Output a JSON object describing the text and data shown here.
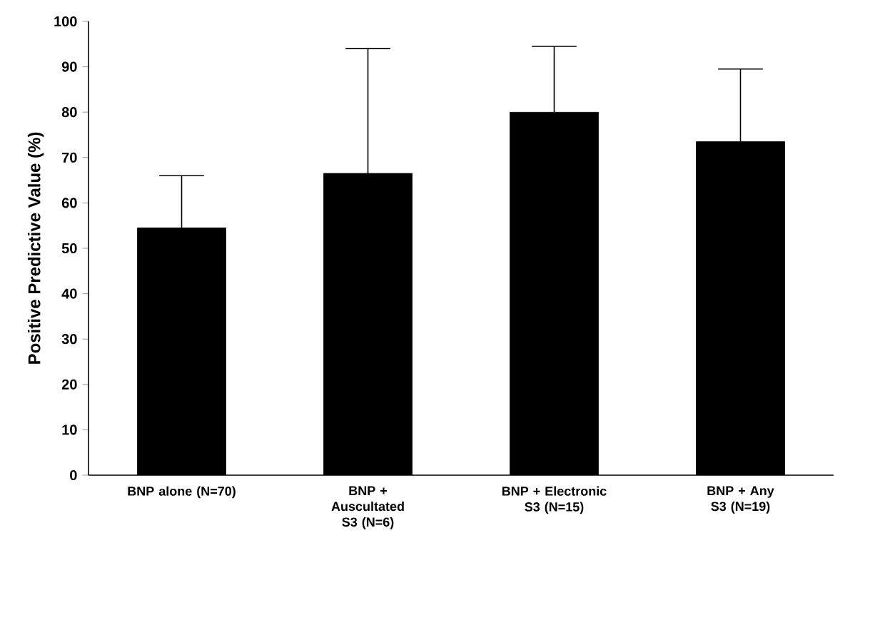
{
  "chart_data": {
    "type": "bar",
    "ylabel": "Positive Predictive Value (%)",
    "categories": [
      "BNP alone (N=70)",
      "BNP + Auscultated S3 (N=6)",
      "BNP + Electronic S3 (N=15)",
      "BNP + Any S3 (N=19)"
    ],
    "values": [
      54.5,
      66.5,
      80,
      73.5
    ],
    "errors": [
      [
        54.5,
        66
      ],
      [
        66.5,
        94
      ],
      [
        80,
        94.5
      ],
      [
        73.5,
        89.5
      ]
    ],
    "color": "#000000",
    "ylim": [
      0,
      100
    ],
    "yticks": [
      0,
      10,
      20,
      30,
      40,
      50,
      60,
      70,
      80,
      90,
      100
    ],
    "grid": false
  }
}
